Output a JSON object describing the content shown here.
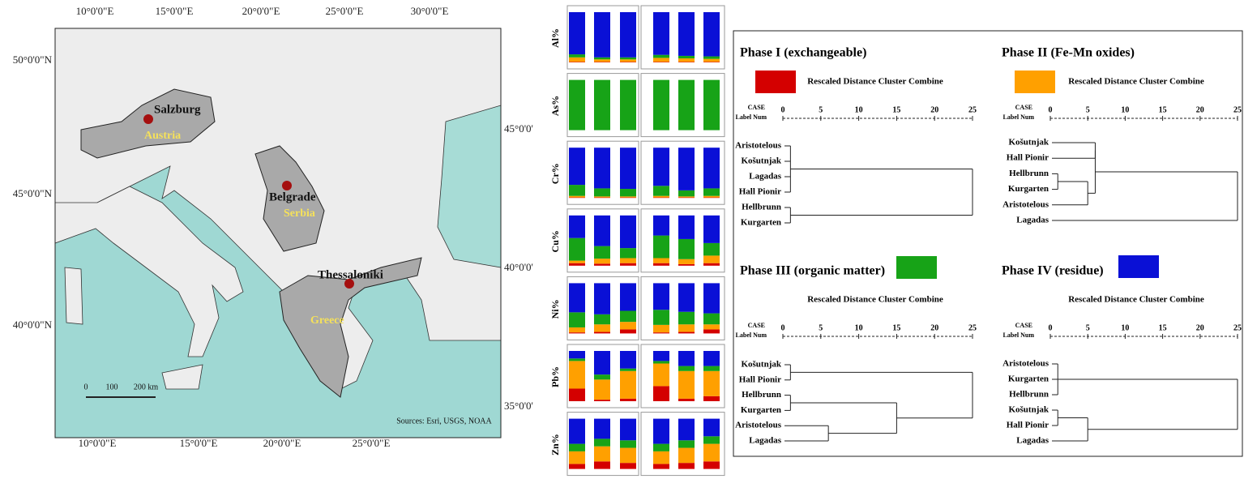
{
  "map": {
    "top_labels": [
      "10°0'0\"E",
      "15°0'0\"E",
      "20°0'0\"E",
      "25°0'0\"E",
      "30°0'0\"E"
    ],
    "bottom_labels": [
      "10°0'0\"E",
      "15°0'0\"E",
      "20°0'0\"E",
      "25°0'0\"E"
    ],
    "left_labels": [
      "50°0'0\"N",
      "45°0'0\"N",
      "40°0'0\"N"
    ],
    "right_labels": [
      "45°0'0'",
      "40°0'0'",
      "35°0'0'"
    ],
    "cities": [
      "Salzburg",
      "Belgrade",
      "Thessaloniki"
    ],
    "countries": [
      "Austria",
      "Serbia",
      "Greece"
    ],
    "scale": [
      "0",
      "100",
      "200 km"
    ],
    "credits": "Sources: Esri, USGS, NOAA"
  },
  "chart_data": [
    {
      "type": "bar",
      "stacked": true,
      "ylabel": "Al%",
      "ylim": [
        0,
        100
      ],
      "series": [
        {
          "color": "#d40000",
          "values": [
            1,
            1,
            1,
            1,
            1,
            1
          ]
        },
        {
          "color": "#ffa000",
          "values": [
            9,
            5,
            5,
            8,
            7,
            6
          ]
        },
        {
          "color": "#17a317",
          "values": [
            6,
            4,
            4,
            6,
            5,
            5
          ]
        },
        {
          "color": "#0a10d6",
          "values": [
            84,
            90,
            90,
            85,
            87,
            88
          ]
        }
      ]
    },
    {
      "type": "bar",
      "stacked": true,
      "ylabel": "As%",
      "ylim": [
        0,
        100
      ],
      "series": [
        {
          "color": "#d40000",
          "values": [
            0,
            0,
            0,
            0,
            0,
            0
          ]
        },
        {
          "color": "#ffa000",
          "values": [
            0,
            0,
            0,
            0,
            0,
            0
          ]
        },
        {
          "color": "#17a317",
          "values": [
            100,
            100,
            100,
            100,
            100,
            100
          ]
        },
        {
          "color": "#0a10d6",
          "values": [
            0,
            0,
            0,
            0,
            0,
            0
          ]
        }
      ]
    },
    {
      "type": "bar",
      "stacked": true,
      "ylabel": "Cr%",
      "ylim": [
        0,
        100
      ],
      "series": [
        {
          "color": "#d40000",
          "values": [
            1,
            1,
            1,
            1,
            1,
            1
          ]
        },
        {
          "color": "#ffa000",
          "values": [
            3,
            2,
            2,
            3,
            2,
            3
          ]
        },
        {
          "color": "#17a317",
          "values": [
            22,
            16,
            15,
            20,
            12,
            15
          ]
        },
        {
          "color": "#0a10d6",
          "values": [
            74,
            81,
            82,
            76,
            85,
            81
          ]
        }
      ]
    },
    {
      "type": "bar",
      "stacked": true,
      "ylabel": "Cu%",
      "ylim": [
        0,
        100
      ],
      "series": [
        {
          "color": "#d40000",
          "values": [
            5,
            4,
            5,
            5,
            3,
            5
          ]
        },
        {
          "color": "#ffa000",
          "values": [
            5,
            10,
            10,
            10,
            10,
            15
          ]
        },
        {
          "color": "#17a317",
          "values": [
            45,
            25,
            20,
            45,
            40,
            25
          ]
        },
        {
          "color": "#0a10d6",
          "values": [
            45,
            61,
            65,
            40,
            47,
            55
          ]
        }
      ]
    },
    {
      "type": "bar",
      "stacked": true,
      "ylabel": "Ni%",
      "ylim": [
        0,
        100
      ],
      "series": [
        {
          "color": "#d40000",
          "values": [
            2,
            3,
            8,
            2,
            3,
            8
          ]
        },
        {
          "color": "#ffa000",
          "values": [
            10,
            15,
            15,
            15,
            15,
            10
          ]
        },
        {
          "color": "#17a317",
          "values": [
            30,
            20,
            22,
            30,
            25,
            22
          ]
        },
        {
          "color": "#0a10d6",
          "values": [
            58,
            62,
            55,
            53,
            57,
            60
          ]
        }
      ]
    },
    {
      "type": "bar",
      "stacked": true,
      "ylabel": "Pb%",
      "ylim": [
        0,
        100
      ],
      "series": [
        {
          "color": "#d40000",
          "values": [
            25,
            3,
            5,
            30,
            5,
            10
          ]
        },
        {
          "color": "#ffa000",
          "values": [
            55,
            40,
            55,
            45,
            55,
            50
          ]
        },
        {
          "color": "#17a317",
          "values": [
            5,
            10,
            5,
            5,
            10,
            10
          ]
        },
        {
          "color": "#0a10d6",
          "values": [
            15,
            47,
            35,
            20,
            30,
            30
          ]
        }
      ]
    },
    {
      "type": "bar",
      "stacked": true,
      "ylabel": "Zn%",
      "ylim": [
        0,
        100
      ],
      "series": [
        {
          "color": "#d40000",
          "values": [
            10,
            15,
            12,
            10,
            12,
            15
          ]
        },
        {
          "color": "#ffa000",
          "values": [
            25,
            30,
            30,
            25,
            30,
            35
          ]
        },
        {
          "color": "#17a317",
          "values": [
            15,
            15,
            15,
            15,
            15,
            15
          ]
        },
        {
          "color": "#0a10d6",
          "values": [
            50,
            40,
            43,
            50,
            43,
            35
          ]
        }
      ]
    },
    {
      "type": "dendrogram",
      "title": "Phase I (exchangeable)",
      "color": "#d40000",
      "subtitle": "Rescaled Distance Cluster Combine",
      "case_label": "CASE",
      "num_label": "Label  Num",
      "xlim": [
        0,
        25
      ],
      "xticks": [
        0,
        5,
        10,
        15,
        20,
        25
      ],
      "leaves": [
        "Aristotelous",
        "Košutnjak",
        "Lagadas",
        "Hall Pionir",
        "Hellbrunn",
        "Kurgarten"
      ],
      "merges": [
        {
          "children": [
            0,
            1,
            2,
            3
          ],
          "distance": 1
        },
        {
          "children": [
            4,
            5
          ],
          "distance": 1
        },
        {
          "children": [
            6,
            7
          ],
          "distance": 25
        }
      ]
    },
    {
      "type": "dendrogram",
      "title": "Phase II (Fe-Mn oxides)",
      "color": "#ffa000",
      "subtitle": "Rescaled Distance Cluster Combine",
      "case_label": "CASE",
      "num_label": "Label  Num",
      "xlim": [
        0,
        25
      ],
      "xticks": [
        0,
        5,
        10,
        15,
        20,
        25
      ],
      "leaves": [
        "Košutnjak",
        "Hall Pionir",
        "Hellbrunn",
        "Kurgarten",
        "Aristotelous",
        "Lagadas"
      ],
      "merges": [
        {
          "children": [
            0,
            1
          ],
          "distance": 6
        },
        {
          "children": [
            2,
            3
          ],
          "distance": 1
        },
        {
          "children": [
            7,
            4
          ],
          "distance": 5
        },
        {
          "children": [
            6,
            8
          ],
          "distance": 6
        },
        {
          "children": [
            9,
            5
          ],
          "distance": 25
        }
      ]
    },
    {
      "type": "dendrogram",
      "title": "Phase III (organic matter)",
      "color": "#17a317",
      "subtitle": "Rescaled Distance Cluster Combine",
      "case_label": "CASE",
      "num_label": "Label  Num",
      "xlim": [
        0,
        25
      ],
      "xticks": [
        0,
        5,
        10,
        15,
        20,
        25
      ],
      "leaves": [
        "Košutnjak",
        "Hall Pionir",
        "Hellbrunn",
        "Kurgarten",
        "Aristotelous",
        "Lagadas"
      ],
      "merges": [
        {
          "children": [
            0,
            1
          ],
          "distance": 1
        },
        {
          "children": [
            2,
            3
          ],
          "distance": 1
        },
        {
          "children": [
            4,
            5
          ],
          "distance": 6
        },
        {
          "children": [
            7,
            8
          ],
          "distance": 15
        },
        {
          "children": [
            6,
            9
          ],
          "distance": 25
        }
      ]
    },
    {
      "type": "dendrogram",
      "title": "Phase IV (residue)",
      "color": "#0a10d6",
      "subtitle": "Rescaled Distance Cluster Combine",
      "case_label": "CASE",
      "num_label": "Label  Num",
      "xlim": [
        0,
        25
      ],
      "xticks": [
        0,
        5,
        10,
        15,
        20,
        25
      ],
      "leaves": [
        "Aristotelous",
        "Kurgarten",
        "Hellbrunn",
        "Košutnjak",
        "Hall Pionir",
        "Lagadas"
      ],
      "merges": [
        {
          "children": [
            0,
            1,
            2
          ],
          "distance": 1
        },
        {
          "children": [
            3,
            4
          ],
          "distance": 1
        },
        {
          "children": [
            7,
            5
          ],
          "distance": 5
        },
        {
          "children": [
            6,
            8
          ],
          "distance": 25
        }
      ]
    }
  ]
}
